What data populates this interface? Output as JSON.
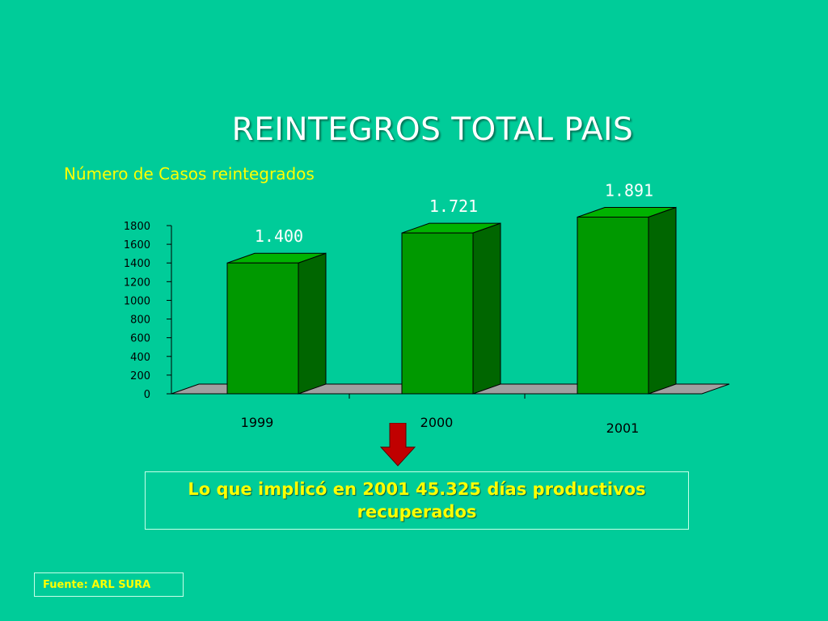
{
  "slide": {
    "title": "REINTEGROS TOTAL PAIS",
    "subtitle": "Número de Casos reintegrados",
    "callout": "Lo que implicó en 2001 45.325 días productivos recuperados",
    "source": "Fuente: ARL SURA"
  },
  "colors": {
    "background": "#00cc99",
    "bar_front": "#009900",
    "bar_side": "#006600",
    "bar_top": "#00b300",
    "floor": "#a0a0a0",
    "text_yellow": "#ffff00",
    "arrow": "#c00000"
  },
  "chart_data": {
    "type": "bar",
    "categories": [
      "1999",
      "2000",
      "2001"
    ],
    "values": [
      1400,
      1721,
      1891
    ],
    "data_labels": [
      "1.400",
      "1.721",
      "1.891"
    ],
    "yticks": [
      0,
      200,
      400,
      600,
      800,
      1000,
      1200,
      1400,
      1600,
      1800
    ],
    "ylim": [
      0,
      1800
    ],
    "title": "",
    "xlabel": "",
    "ylabel": "",
    "grid": false,
    "style": "3d-bar"
  }
}
